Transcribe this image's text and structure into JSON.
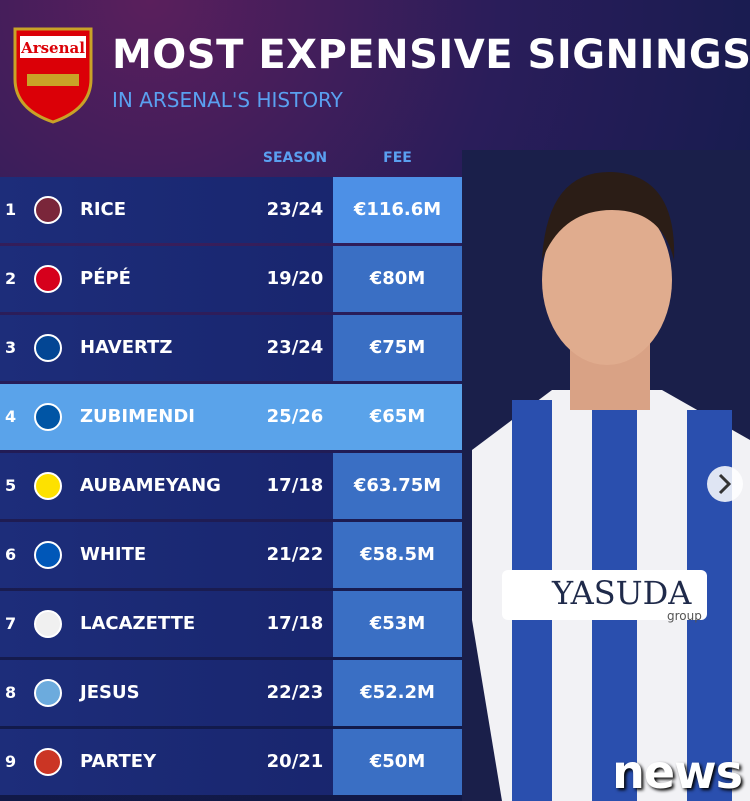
{
  "header": {
    "logo": "Arsenal",
    "title": "MOST EXPENSIVE SIGNINGS",
    "subtitle": "IN ARSENAL'S HISTORY"
  },
  "table": {
    "columns": [
      "SEASON",
      "FEE"
    ],
    "rows": [
      [
        1,
        "RICE",
        "23/24",
        "€116.6M"
      ],
      [
        2,
        "PÉPÉ",
        "19/20",
        "€80M"
      ],
      [
        3,
        "HAVERTZ",
        "23/24",
        "€75M"
      ],
      [
        4,
        "ZUBIMENDI",
        "25/26",
        "€65M"
      ],
      [
        5,
        "AUBAMEYANG",
        "17/18",
        "€63.75M"
      ],
      [
        6,
        "WHITE",
        "21/22",
        "€58.5M"
      ],
      [
        7,
        "LACAZETTE",
        "17/18",
        "€53M"
      ],
      [
        8,
        "JESUS",
        "22/23",
        "€52.2M"
      ],
      [
        9,
        "PARTEY",
        "20/21",
        "€50M"
      ]
    ]
  },
  "photo": {
    "sponsor": "YASUDA",
    "sponsor_sub": "group"
  },
  "watermark": "news"
}
